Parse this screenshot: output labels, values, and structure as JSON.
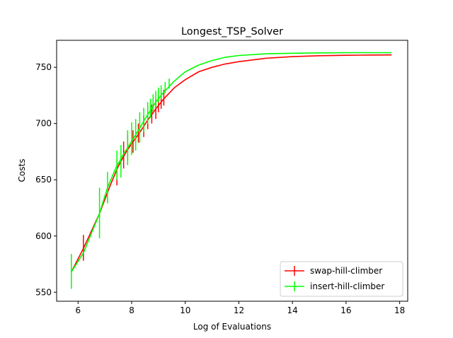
{
  "chart_data": {
    "type": "line",
    "title": "Longest_TSP_Solver",
    "xlabel": "Log of Evaluations",
    "ylabel": "Costs",
    "xlim": [
      5.2,
      18.3
    ],
    "ylim": [
      542,
      774
    ],
    "xticks": [
      6,
      8,
      10,
      12,
      14,
      16,
      18
    ],
    "yticks": [
      550,
      600,
      650,
      700,
      750
    ],
    "legend_position": "lower-right",
    "grid": false,
    "series": [
      {
        "name": "swap-hill-climber",
        "color": "#ff0000",
        "points": [
          [
            5.75,
            568
          ],
          [
            6.2,
            589
          ],
          [
            6.8,
            620
          ],
          [
            7.2,
            645
          ],
          [
            7.5,
            662
          ],
          [
            7.8,
            675
          ],
          [
            8.0,
            682
          ],
          [
            8.3,
            692
          ],
          [
            8.6,
            703
          ],
          [
            8.9,
            713
          ],
          [
            9.2,
            722
          ],
          [
            9.6,
            732
          ],
          [
            10.0,
            739
          ],
          [
            10.5,
            746
          ],
          [
            11.0,
            750
          ],
          [
            11.5,
            753
          ],
          [
            12.0,
            755
          ],
          [
            13.0,
            758
          ],
          [
            14.0,
            759.5
          ],
          [
            15.0,
            760.3
          ],
          [
            16.0,
            760.7
          ],
          [
            17.0,
            760.9
          ],
          [
            17.7,
            761
          ]
        ],
        "error_bars": [
          [
            6.2,
            578,
            601
          ],
          [
            7.45,
            645,
            668
          ],
          [
            7.7,
            660,
            684
          ],
          [
            7.85,
            668,
            690
          ],
          [
            8.05,
            674,
            694
          ],
          [
            8.25,
            683,
            700
          ],
          [
            8.45,
            688,
            707
          ],
          [
            8.6,
            695,
            713
          ],
          [
            8.75,
            700,
            717
          ],
          [
            8.9,
            704,
            722
          ],
          [
            9.0,
            710,
            725
          ],
          [
            9.1,
            713,
            727
          ],
          [
            9.2,
            716,
            730
          ]
        ]
      },
      {
        "name": "insert-hill-climber",
        "color": "#00ff00",
        "points": [
          [
            5.75,
            568
          ],
          [
            6.2,
            585
          ],
          [
            6.8,
            620
          ],
          [
            7.1,
            643
          ],
          [
            7.4,
            660
          ],
          [
            7.7,
            673
          ],
          [
            8.0,
            684
          ],
          [
            8.3,
            696
          ],
          [
            8.6,
            708
          ],
          [
            8.9,
            719
          ],
          [
            9.2,
            728
          ],
          [
            9.6,
            738
          ],
          [
            10.0,
            746
          ],
          [
            10.5,
            752
          ],
          [
            11.0,
            756
          ],
          [
            11.5,
            759
          ],
          [
            12.0,
            760.5
          ],
          [
            13.0,
            762
          ],
          [
            14.0,
            762.5
          ],
          [
            15.0,
            762.8
          ],
          [
            16.0,
            763
          ],
          [
            17.0,
            763
          ],
          [
            17.7,
            763
          ]
        ],
        "error_bars": [
          [
            5.75,
            553,
            584
          ],
          [
            6.8,
            598,
            643
          ],
          [
            7.1,
            629,
            657
          ],
          [
            7.45,
            650,
            676
          ],
          [
            7.6,
            652,
            681
          ],
          [
            7.85,
            663,
            694
          ],
          [
            8.0,
            672,
            701
          ],
          [
            8.15,
            676,
            704
          ],
          [
            8.3,
            683,
            710
          ],
          [
            8.45,
            692,
            714
          ],
          [
            8.6,
            700,
            719
          ],
          [
            8.7,
            705,
            722
          ],
          [
            8.8,
            710,
            726
          ],
          [
            8.9,
            714,
            729
          ],
          [
            9.0,
            719,
            732
          ],
          [
            9.1,
            722,
            734
          ],
          [
            9.25,
            727,
            737
          ],
          [
            9.4,
            731,
            740
          ]
        ]
      }
    ]
  }
}
